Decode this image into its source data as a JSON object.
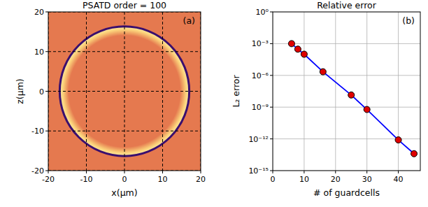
{
  "chart_data": [
    {
      "type": "image",
      "title": "PSATD order = 100",
      "x_label": "x(μm)",
      "y_label": "z(μm)",
      "annotation": "(a)",
      "xlim": [
        -20,
        20
      ],
      "ylim": [
        -20,
        20
      ],
      "xticks": [
        -20,
        -10,
        0,
        10,
        20
      ],
      "yticks": [
        -20,
        -10,
        0,
        10,
        20
      ],
      "grid": true,
      "ring_radius": 17,
      "color": "#e5794f"
    },
    {
      "type": "line",
      "title": "Relative error",
      "x_label": "# of guardcells",
      "y_label": "L₂ error",
      "annotation": "(b)",
      "log": "y",
      "grid": true,
      "color": "blue",
      "marker": "circle",
      "x": [
        6,
        8,
        10,
        16,
        25,
        30,
        40,
        45
      ],
      "values": [
        0.001,
        0.0003,
        0.0001,
        2.2e-06,
        1.4e-08,
        6e-10,
        8e-13,
        4e-14
      ],
      "xlim": [
        0,
        47
      ],
      "ylim": [
        1e-15,
        1
      ],
      "xticks": [
        0,
        10,
        20,
        30,
        40
      ],
      "yticks": [
        {
          "value": 1e-15,
          "label": "10⁻¹⁵"
        },
        {
          "value": 1e-12,
          "label": "10⁻¹²"
        },
        {
          "value": 1e-09,
          "label": "10⁻⁹"
        },
        {
          "value": 1e-06,
          "label": "10⁻⁶"
        },
        {
          "value": 0.001,
          "label": "10⁻³"
        },
        {
          "value": 1,
          "label": "10⁰"
        }
      ]
    }
  ]
}
